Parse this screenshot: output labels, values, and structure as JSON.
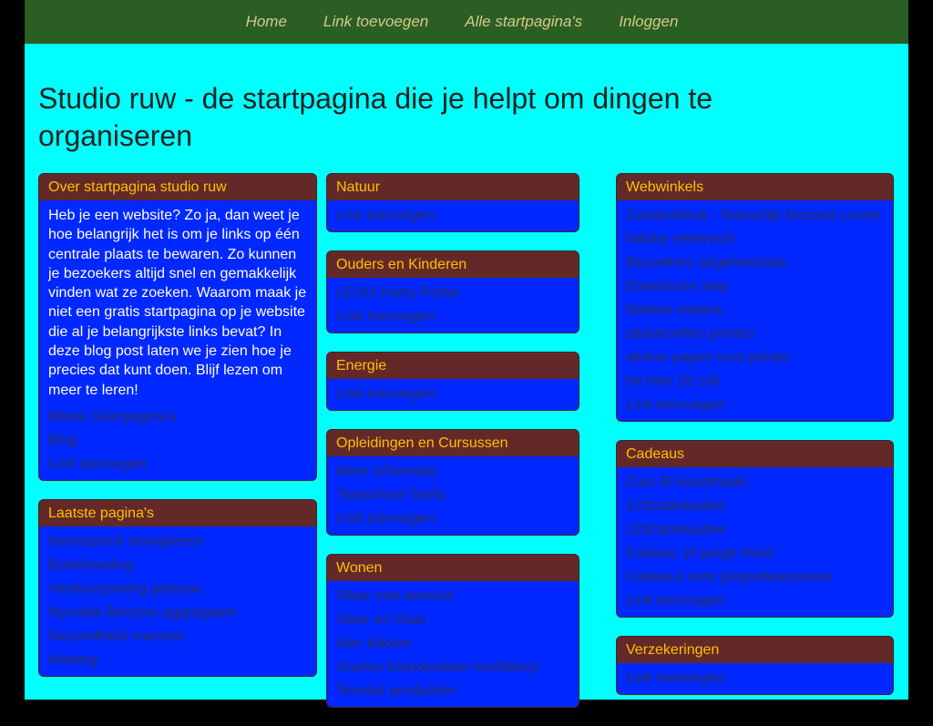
{
  "nav": [
    {
      "label": "Home"
    },
    {
      "label": "Link toevoegen"
    },
    {
      "label": "Alle startpagina's"
    },
    {
      "label": "Inloggen"
    }
  ],
  "title": "Studio ruw - de startpagina die je helpt om dingen te organiseren",
  "colors": {
    "background": "#00ffff",
    "nav": "#2a5e23",
    "box_header": "#632929",
    "box_body": "#0028ff",
    "header_text": "#ffc000"
  },
  "columns": [
    [
      {
        "title": "Over startpagina studio ruw",
        "text": "Heb je een website? Zo ja, dan weet je hoe belangrijk het is om je links op één centrale plaats te bewaren. Zo kunnen je bezoekers altijd snel en gemakkelijk vinden wat ze zoeken. Waarom maak je niet een gratis startpagina op je website die al je belangrijkste links bevat? In deze blog post laten we je zien hoe je precies dat kunt doen. Blijf lezen om meer te leren!",
        "links": [
          "Mooie Startpagina's",
          "Blog"
        ],
        "add": "Link toevoegen"
      },
      {
        "title": "Laatste pagina's",
        "links": [
          "boomstronk verwijderen",
          "Boekhouding",
          "Verduurzaming gebouw",
          "Hyundai Benzine aggregaten",
          "Gezondheid mannen",
          "Hosting"
        ]
      }
    ],
    [
      {
        "title": "Natuur",
        "links": [],
        "add": "Link toevoegen"
      },
      {
        "title": "Ouders en Kinderen",
        "links": [
          "LEGO Harry Potter"
        ],
        "add": "Link toevoegen"
      },
      {
        "title": "Energie",
        "links": [],
        "add": "Link toevoegen"
      },
      {
        "title": "Opleidingen en Cursussen",
        "links": [
          "Meer informatie",
          "Taalschool Tarifa"
        ],
        "add": "Link toevoegen"
      },
      {
        "title": "Wonen",
        "links": [
          "Sfeer met wierook",
          "Vloer en Visie",
          "Hier klikken",
          "charles brandonlaan hoofddorp",
          "Texelse producten"
        ]
      }
    ],
    [
      {
        "title": "Webwinkels",
        "links": [
          "ZonderMeuk - Natuurlijk Gezond Leven",
          "fatbike elektrisch",
          "Bezoekers segementatie",
          "Elektrische step",
          "Wellion meters",
          "stickervellen printen",
          "sticker papier voor printer",
          "fat bike 28 zoll"
        ],
        "add": "Link toevoegen"
      },
      {
        "title": "Cadeaus",
        "links": [
          "Caro B Handmade",
          "123cadeauidee",
          "123cadeauidee",
          "Cadeau 16 jarige meid",
          "Cadeaus voor jongvolwassenen"
        ],
        "add": "Link toevoegen"
      },
      {
        "title": "Verzekeringen",
        "links": [],
        "add": "Link toevoegen"
      }
    ]
  ]
}
